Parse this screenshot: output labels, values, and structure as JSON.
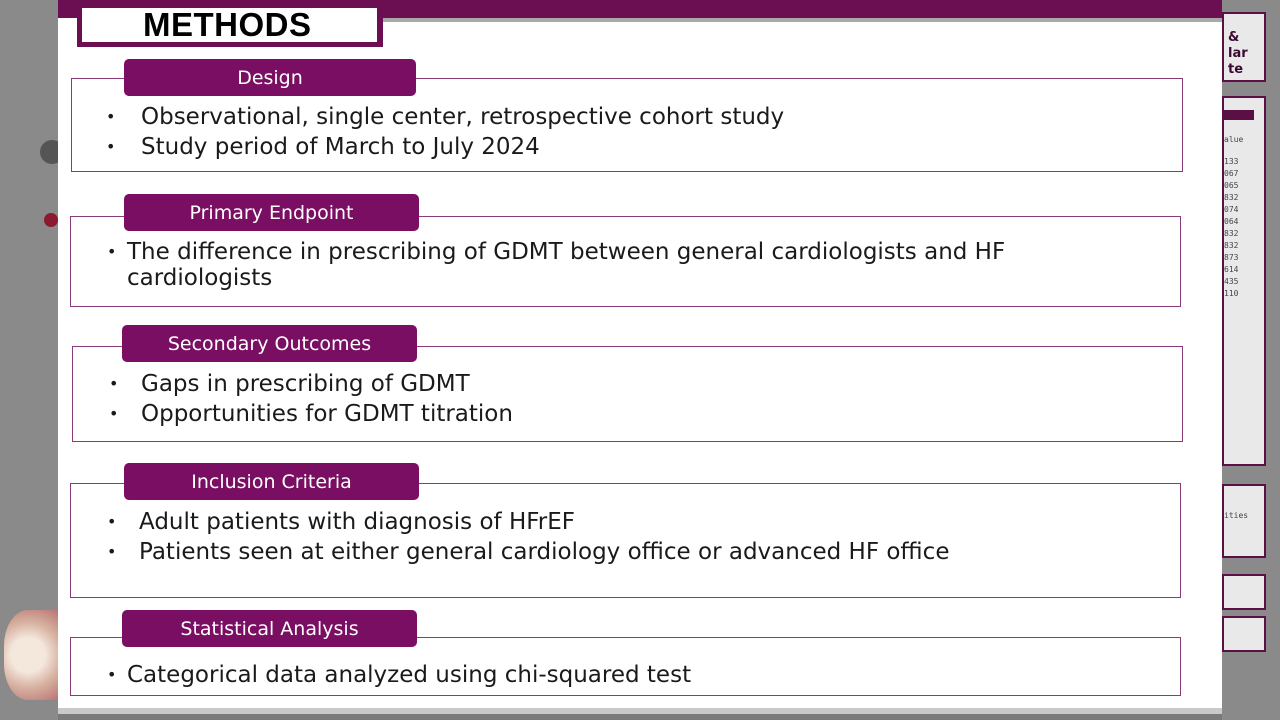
{
  "slide": {
    "title": "METHODS",
    "sections": [
      {
        "heading": "Design",
        "bullets": [
          "Observational, single center, retrospective cohort study",
          "Study period of March to July 2024"
        ]
      },
      {
        "heading": "Primary Endpoint",
        "bullets": [
          "The difference in prescribing of GDMT between general cardiologists and HF cardiologists"
        ]
      },
      {
        "heading": "Secondary Outcomes",
        "bullets": [
          "Gaps in prescribing of GDMT",
          "Opportunities for GDMT titration"
        ]
      },
      {
        "heading": "Inclusion Criteria",
        "bullets": [
          "Adult patients with diagnosis of HFrEF",
          "Patients seen at either general cardiology office or advanced HF office"
        ]
      },
      {
        "heading": "Statistical Analysis",
        "bullets": [
          "Categorical data analyzed using chi-squared test"
        ]
      }
    ]
  },
  "background": {
    "right_edge_text": [
      "&",
      "lar",
      "te"
    ],
    "right_table_header": "alue",
    "right_table_values": [
      "133",
      "067",
      "065",
      "832",
      "074",
      "064",
      "832",
      "832",
      "873",
      "614",
      "435",
      "110"
    ],
    "right_card_text": "ities"
  },
  "colors": {
    "accent": "#6b0f52",
    "pill": "#7a0e62",
    "border": "#8a3a7a"
  }
}
